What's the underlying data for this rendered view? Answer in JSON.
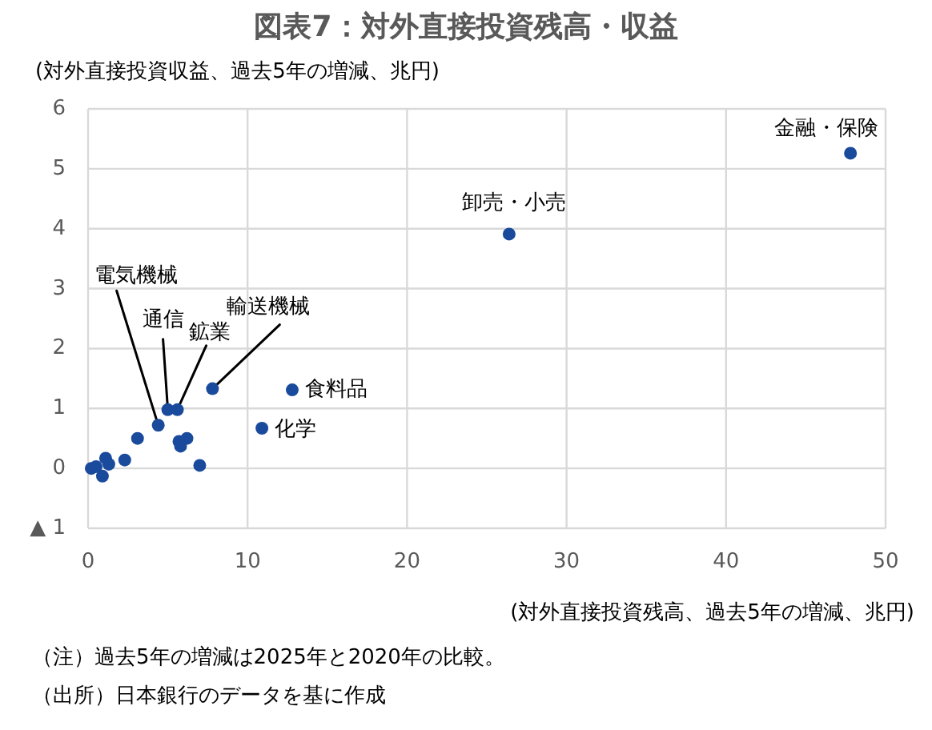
{
  "chart_data": {
    "type": "scatter",
    "title": "図表7：対外直接投資残高・収益",
    "ylabel": "(対外直接投資収益、過去5年の増減、兆円)",
    "xlabel": "(対外直接投資残高、過去5年の増減、兆円)",
    "x": [
      0.2,
      0.5,
      1.1,
      1.3,
      0.9,
      2.3,
      3.1,
      4.4,
      5.0,
      5.6,
      5.7,
      5.8,
      6.2,
      7.0,
      7.8,
      10.9,
      12.8,
      26.4,
      47.8
    ],
    "values": [
      0.0,
      0.03,
      0.17,
      0.07,
      -0.13,
      0.14,
      0.5,
      0.72,
      0.98,
      0.98,
      0.45,
      0.37,
      0.5,
      0.05,
      1.33,
      0.67,
      1.31,
      3.91,
      5.26
    ],
    "color": "#1a4a9c",
    "marker": "circle",
    "grid": true,
    "xlim": [
      0,
      50
    ],
    "ylim": [
      -1,
      6
    ],
    "xticks": [
      0,
      10,
      20,
      30,
      40,
      50
    ],
    "yticks": [
      {
        "value": -1,
        "label": "▲ 1"
      },
      0,
      1,
      2,
      3,
      4,
      5,
      6
    ],
    "annotations": [
      {
        "text": "金融・保険",
        "x": 47.8,
        "y": 5.26
      },
      {
        "text": "卸売・小売",
        "x": 26.4,
        "y": 3.91
      },
      {
        "text": "電気機械",
        "x": 4.4,
        "y": 0.72
      },
      {
        "text": "通信",
        "x": 5.0,
        "y": 0.98
      },
      {
        "text": "鉱業",
        "x": 5.6,
        "y": 0.98
      },
      {
        "text": "輸送機械",
        "x": 7.8,
        "y": 1.33
      },
      {
        "text": "食料品",
        "x": 12.8,
        "y": 1.31
      },
      {
        "text": "化学",
        "x": 10.9,
        "y": 0.67
      },
      "（注）過去5年の増減は2025年と2020年の比較。",
      "（出所）日本銀行のデータを基に作成"
    ]
  }
}
